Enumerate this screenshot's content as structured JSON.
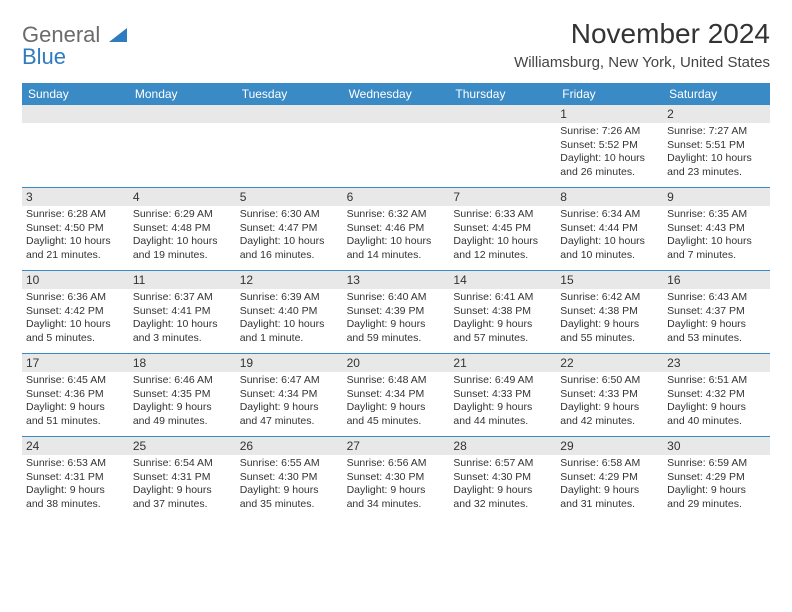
{
  "logo": {
    "part1": "General",
    "part2": "Blue"
  },
  "title": "November 2024",
  "subtitle": "Williamsburg, New York, United States",
  "colors": {
    "header_bg": "#3a8ac6",
    "header_fg": "#ffffff",
    "daynum_bg": "#e8e8e8",
    "week_border": "#3a8ac6",
    "logo_gray": "#6b6b6b",
    "logo_blue": "#2f7bbf",
    "text": "#333333"
  },
  "day_names": [
    "Sunday",
    "Monday",
    "Tuesday",
    "Wednesday",
    "Thursday",
    "Friday",
    "Saturday"
  ],
  "weeks": [
    [
      {
        "day": null
      },
      {
        "day": null
      },
      {
        "day": null
      },
      {
        "day": null
      },
      {
        "day": null
      },
      {
        "day": "1",
        "sunrise": "Sunrise: 7:26 AM",
        "sunset": "Sunset: 5:52 PM",
        "daylight": "Daylight: 10 hours and 26 minutes."
      },
      {
        "day": "2",
        "sunrise": "Sunrise: 7:27 AM",
        "sunset": "Sunset: 5:51 PM",
        "daylight": "Daylight: 10 hours and 23 minutes."
      }
    ],
    [
      {
        "day": "3",
        "sunrise": "Sunrise: 6:28 AM",
        "sunset": "Sunset: 4:50 PM",
        "daylight": "Daylight: 10 hours and 21 minutes."
      },
      {
        "day": "4",
        "sunrise": "Sunrise: 6:29 AM",
        "sunset": "Sunset: 4:48 PM",
        "daylight": "Daylight: 10 hours and 19 minutes."
      },
      {
        "day": "5",
        "sunrise": "Sunrise: 6:30 AM",
        "sunset": "Sunset: 4:47 PM",
        "daylight": "Daylight: 10 hours and 16 minutes."
      },
      {
        "day": "6",
        "sunrise": "Sunrise: 6:32 AM",
        "sunset": "Sunset: 4:46 PM",
        "daylight": "Daylight: 10 hours and 14 minutes."
      },
      {
        "day": "7",
        "sunrise": "Sunrise: 6:33 AM",
        "sunset": "Sunset: 4:45 PM",
        "daylight": "Daylight: 10 hours and 12 minutes."
      },
      {
        "day": "8",
        "sunrise": "Sunrise: 6:34 AM",
        "sunset": "Sunset: 4:44 PM",
        "daylight": "Daylight: 10 hours and 10 minutes."
      },
      {
        "day": "9",
        "sunrise": "Sunrise: 6:35 AM",
        "sunset": "Sunset: 4:43 PM",
        "daylight": "Daylight: 10 hours and 7 minutes."
      }
    ],
    [
      {
        "day": "10",
        "sunrise": "Sunrise: 6:36 AM",
        "sunset": "Sunset: 4:42 PM",
        "daylight": "Daylight: 10 hours and 5 minutes."
      },
      {
        "day": "11",
        "sunrise": "Sunrise: 6:37 AM",
        "sunset": "Sunset: 4:41 PM",
        "daylight": "Daylight: 10 hours and 3 minutes."
      },
      {
        "day": "12",
        "sunrise": "Sunrise: 6:39 AM",
        "sunset": "Sunset: 4:40 PM",
        "daylight": "Daylight: 10 hours and 1 minute."
      },
      {
        "day": "13",
        "sunrise": "Sunrise: 6:40 AM",
        "sunset": "Sunset: 4:39 PM",
        "daylight": "Daylight: 9 hours and 59 minutes."
      },
      {
        "day": "14",
        "sunrise": "Sunrise: 6:41 AM",
        "sunset": "Sunset: 4:38 PM",
        "daylight": "Daylight: 9 hours and 57 minutes."
      },
      {
        "day": "15",
        "sunrise": "Sunrise: 6:42 AM",
        "sunset": "Sunset: 4:38 PM",
        "daylight": "Daylight: 9 hours and 55 minutes."
      },
      {
        "day": "16",
        "sunrise": "Sunrise: 6:43 AM",
        "sunset": "Sunset: 4:37 PM",
        "daylight": "Daylight: 9 hours and 53 minutes."
      }
    ],
    [
      {
        "day": "17",
        "sunrise": "Sunrise: 6:45 AM",
        "sunset": "Sunset: 4:36 PM",
        "daylight": "Daylight: 9 hours and 51 minutes."
      },
      {
        "day": "18",
        "sunrise": "Sunrise: 6:46 AM",
        "sunset": "Sunset: 4:35 PM",
        "daylight": "Daylight: 9 hours and 49 minutes."
      },
      {
        "day": "19",
        "sunrise": "Sunrise: 6:47 AM",
        "sunset": "Sunset: 4:34 PM",
        "daylight": "Daylight: 9 hours and 47 minutes."
      },
      {
        "day": "20",
        "sunrise": "Sunrise: 6:48 AM",
        "sunset": "Sunset: 4:34 PM",
        "daylight": "Daylight: 9 hours and 45 minutes."
      },
      {
        "day": "21",
        "sunrise": "Sunrise: 6:49 AM",
        "sunset": "Sunset: 4:33 PM",
        "daylight": "Daylight: 9 hours and 44 minutes."
      },
      {
        "day": "22",
        "sunrise": "Sunrise: 6:50 AM",
        "sunset": "Sunset: 4:33 PM",
        "daylight": "Daylight: 9 hours and 42 minutes."
      },
      {
        "day": "23",
        "sunrise": "Sunrise: 6:51 AM",
        "sunset": "Sunset: 4:32 PM",
        "daylight": "Daylight: 9 hours and 40 minutes."
      }
    ],
    [
      {
        "day": "24",
        "sunrise": "Sunrise: 6:53 AM",
        "sunset": "Sunset: 4:31 PM",
        "daylight": "Daylight: 9 hours and 38 minutes."
      },
      {
        "day": "25",
        "sunrise": "Sunrise: 6:54 AM",
        "sunset": "Sunset: 4:31 PM",
        "daylight": "Daylight: 9 hours and 37 minutes."
      },
      {
        "day": "26",
        "sunrise": "Sunrise: 6:55 AM",
        "sunset": "Sunset: 4:30 PM",
        "daylight": "Daylight: 9 hours and 35 minutes."
      },
      {
        "day": "27",
        "sunrise": "Sunrise: 6:56 AM",
        "sunset": "Sunset: 4:30 PM",
        "daylight": "Daylight: 9 hours and 34 minutes."
      },
      {
        "day": "28",
        "sunrise": "Sunrise: 6:57 AM",
        "sunset": "Sunset: 4:30 PM",
        "daylight": "Daylight: 9 hours and 32 minutes."
      },
      {
        "day": "29",
        "sunrise": "Sunrise: 6:58 AM",
        "sunset": "Sunset: 4:29 PM",
        "daylight": "Daylight: 9 hours and 31 minutes."
      },
      {
        "day": "30",
        "sunrise": "Sunrise: 6:59 AM",
        "sunset": "Sunset: 4:29 PM",
        "daylight": "Daylight: 9 hours and 29 minutes."
      }
    ]
  ]
}
